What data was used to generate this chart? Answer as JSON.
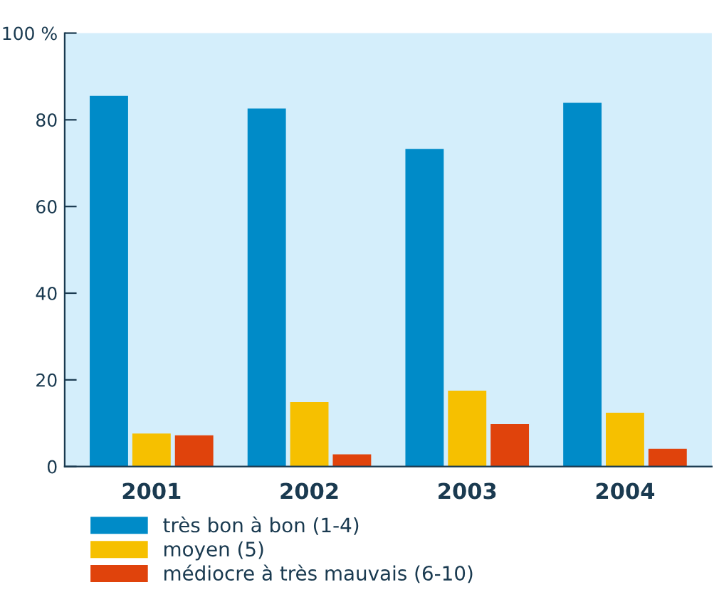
{
  "chart_data": {
    "type": "bar",
    "categories": [
      "2001",
      "2002",
      "2003",
      "2004"
    ],
    "series": [
      {
        "name": "très bon à bon (1-4)",
        "color": "#008bc8",
        "values": [
          85.5,
          82.6,
          73.3,
          83.9
        ]
      },
      {
        "name": "moyen (5)",
        "color": "#f6c000",
        "values": [
          7.6,
          14.9,
          17.5,
          12.4
        ]
      },
      {
        "name": "médiocre à très mauvais (6-10)",
        "color": "#e0430c",
        "values": [
          7.2,
          2.8,
          9.8,
          4.1
        ]
      }
    ],
    "ylim": [
      0,
      100
    ],
    "yticks": [
      0,
      20,
      40,
      60,
      80,
      {
        "value": 100,
        "label": "100 %"
      }
    ],
    "grid": false,
    "legend": "bottom"
  }
}
